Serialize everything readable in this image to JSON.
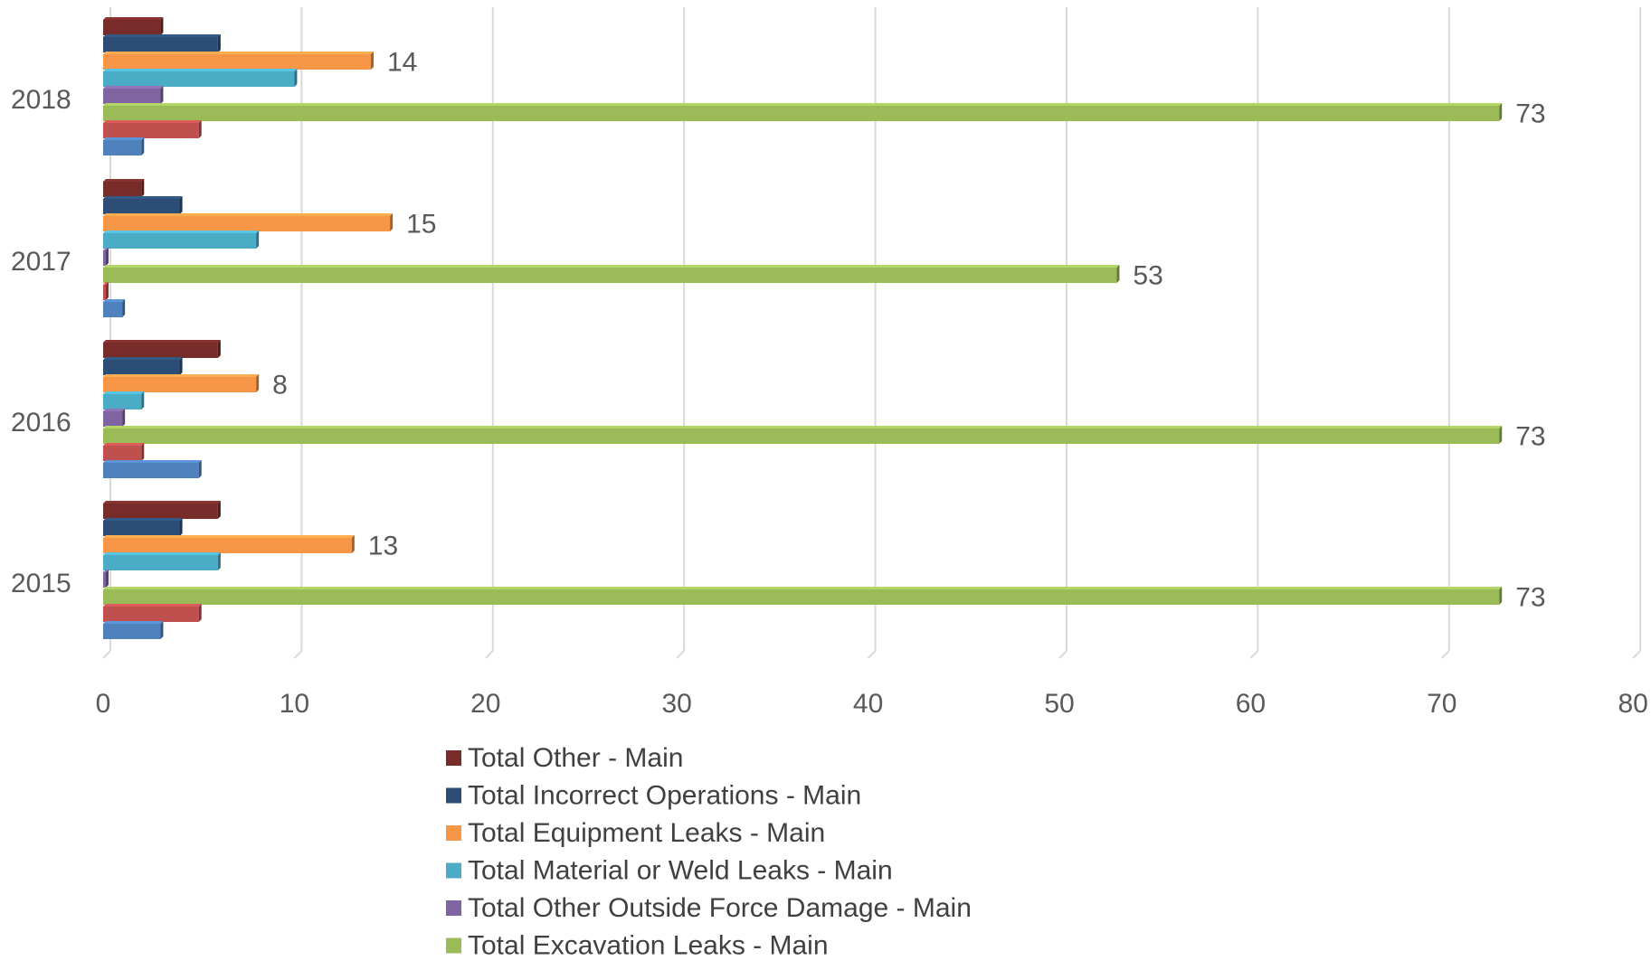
{
  "chart_data": {
    "type": "bar",
    "orientation": "horizontal",
    "style": "3d",
    "categories": [
      "2015",
      "2016",
      "2017",
      "2018"
    ],
    "series": [
      {
        "name": "Total Other - Main",
        "color": "#772c2a",
        "values": [
          6,
          6,
          2,
          3
        ]
      },
      {
        "name": "Total Incorrect Operations - Main",
        "color": "#2c4d75",
        "values": [
          4,
          4,
          4,
          6
        ]
      },
      {
        "name": "Total Equipment Leaks - Main",
        "color": "#f79646",
        "values": [
          13,
          8,
          15,
          14
        ],
        "show_labels": true
      },
      {
        "name": "Total Material or Weld Leaks - Main",
        "color": "#4bacc6",
        "values": [
          6,
          2,
          8,
          10
        ]
      },
      {
        "name": "Total Other Outside Force Damage - Main",
        "color": "#8064a2",
        "values": [
          0,
          1,
          0,
          3
        ]
      },
      {
        "name": "Total Excavation Leaks - Main",
        "color": "#9bbb59",
        "values": [
          73,
          73,
          53,
          73
        ],
        "show_labels": true
      },
      {
        "name": "",
        "color": "#c0504d",
        "values": [
          5,
          2,
          0,
          5
        ]
      },
      {
        "name": "",
        "color": "#4f81bd",
        "values": [
          3,
          5,
          1,
          2
        ]
      }
    ],
    "data_labels": {
      "2015": {
        "equipment": "13",
        "excavation": "73"
      },
      "2016": {
        "equipment": "8",
        "excavation": "73"
      },
      "2017": {
        "equipment": "15",
        "excavation": "53"
      },
      "2018": {
        "equipment": "14",
        "excavation": "73"
      }
    },
    "x_ticks": [
      "0",
      "10",
      "20",
      "30",
      "40",
      "50",
      "60",
      "70",
      "80"
    ],
    "xlim": [
      0,
      80
    ],
    "grid": true,
    "legend_position": "bottom",
    "title": "",
    "xlabel": "",
    "ylabel": ""
  }
}
